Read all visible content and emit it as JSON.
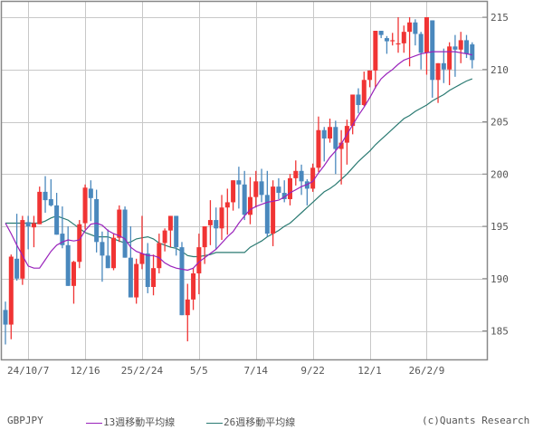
{
  "legend": {
    "symbol": "GBPJPY",
    "ma13_label": "13週移動平均線",
    "ma26_label": "26週移動平均線",
    "credit": "(c)Quants Research"
  },
  "colors": {
    "up": "#f03434",
    "down": "#4a88bd",
    "ma13": "#9922bb",
    "ma26": "#2a7a72",
    "grid": "#c8c8c8",
    "frame": "#888888",
    "axis_text": "#555555"
  },
  "chart_data": {
    "type": "candlestick",
    "title": "",
    "symbol": "GBPJPY",
    "xlabel": "",
    "ylabel": "",
    "ylim": [
      182.5,
      216.5
    ],
    "yticks": [
      185,
      190,
      195,
      200,
      205,
      210,
      215
    ],
    "xtick_labels": [
      "24/10/7",
      "12/16",
      "25/2/24",
      "5/5",
      "7/14",
      "9/22",
      "12/1",
      "26/2/9"
    ],
    "xtick_index": [
      4,
      14,
      24,
      34,
      44,
      54,
      64,
      74
    ],
    "grid": true,
    "legend_position": "bottom",
    "series": [
      {
        "name": "GBPJPY",
        "type": "ohlc",
        "values": [
          [
            187.0,
            187.8,
            183.7,
            185.6
          ],
          [
            185.6,
            192.3,
            184.2,
            192.1
          ],
          [
            191.9,
            196.2,
            189.8,
            190.0
          ],
          [
            190.0,
            196.0,
            189.4,
            195.6
          ],
          [
            195.4,
            196.0,
            192.8,
            195.0
          ],
          [
            194.9,
            196.0,
            193.0,
            195.3
          ],
          [
            195.2,
            198.8,
            195.2,
            198.3
          ],
          [
            198.3,
            199.8,
            196.3,
            197.5
          ],
          [
            197.6,
            199.5,
            196.9,
            197.0
          ],
          [
            197.0,
            198.2,
            194.8,
            194.2
          ],
          [
            194.3,
            196.9,
            192.9,
            193.2
          ],
          [
            193.2,
            195.0,
            191.3,
            189.3
          ],
          [
            189.3,
            191.7,
            187.6,
            191.6
          ],
          [
            191.6,
            195.6,
            191.0,
            195.2
          ],
          [
            195.3,
            199.0,
            194.7,
            198.7
          ],
          [
            198.6,
            199.4,
            195.5,
            197.7
          ],
          [
            197.6,
            198.5,
            192.5,
            193.5
          ],
          [
            193.5,
            194.5,
            189.7,
            192.2
          ],
          [
            192.2,
            194.7,
            191.5,
            191.0
          ],
          [
            191.0,
            194.3,
            190.8,
            193.9
          ],
          [
            193.9,
            197.0,
            193.5,
            196.6
          ],
          [
            196.6,
            196.9,
            193.4,
            192.0
          ],
          [
            192.0,
            195.0,
            190.0,
            188.2
          ],
          [
            188.2,
            191.9,
            187.6,
            191.4
          ],
          [
            191.4,
            196.0,
            190.9,
            192.4
          ],
          [
            192.4,
            193.4,
            188.6,
            189.2
          ],
          [
            189.2,
            192.3,
            188.4,
            191.0
          ],
          [
            191.0,
            194.3,
            190.5,
            193.4
          ],
          [
            193.4,
            194.8,
            192.6,
            194.6
          ],
          [
            194.6,
            195.9,
            193.0,
            196.0
          ],
          [
            196.0,
            195.9,
            192.2,
            193.0
          ],
          [
            193.0,
            193.5,
            188.8,
            186.5
          ],
          [
            186.5,
            189.5,
            184.0,
            188.0
          ],
          [
            188.0,
            191.0,
            187.0,
            190.5
          ],
          [
            190.5,
            194.3,
            188.5,
            193.0
          ],
          [
            193.0,
            194.5,
            191.4,
            195.0
          ],
          [
            195.1,
            197.5,
            193.2,
            195.6
          ],
          [
            195.6,
            196.8,
            192.8,
            194.8
          ],
          [
            194.8,
            198.0,
            193.7,
            196.8
          ],
          [
            196.8,
            198.6,
            194.2,
            197.3
          ],
          [
            197.3,
            199.0,
            196.5,
            199.4
          ],
          [
            199.4,
            200.7,
            196.7,
            199.0
          ],
          [
            199.0,
            200.3,
            195.6,
            196.1
          ],
          [
            196.1,
            199.7,
            195.2,
            197.8
          ],
          [
            197.8,
            200.3,
            196.8,
            199.3
          ],
          [
            199.3,
            200.5,
            197.3,
            198.0
          ],
          [
            198.0,
            200.3,
            194.0,
            194.3
          ],
          [
            194.3,
            199.4,
            193.1,
            198.8
          ],
          [
            198.8,
            199.6,
            197.6,
            198.2
          ],
          [
            198.2,
            199.4,
            197.3,
            197.6
          ],
          [
            197.6,
            200.0,
            197.0,
            199.6
          ],
          [
            199.6,
            201.3,
            198.9,
            200.3
          ],
          [
            200.3,
            200.9,
            198.0,
            199.3
          ],
          [
            199.3,
            199.5,
            197.0,
            198.6
          ],
          [
            198.6,
            201.0,
            198.3,
            200.6
          ],
          [
            200.6,
            205.5,
            200.2,
            204.2
          ],
          [
            204.2,
            204.5,
            201.2,
            203.4
          ],
          [
            203.4,
            205.3,
            203.0,
            204.5
          ],
          [
            204.5,
            205.1,
            200.0,
            202.4
          ],
          [
            202.4,
            204.2,
            199.0,
            203.0
          ],
          [
            203.0,
            205.2,
            200.9,
            204.6
          ],
          [
            204.6,
            207.6,
            203.8,
            207.6
          ],
          [
            207.6,
            208.2,
            205.8,
            206.6
          ],
          [
            206.6,
            209.8,
            206.5,
            209.0
          ],
          [
            209.0,
            209.9,
            208.3,
            209.9
          ],
          [
            209.9,
            213.2,
            208.2,
            213.7
          ],
          [
            213.7,
            212.8,
            213.0,
            213.3
          ],
          [
            213.0,
            213.2,
            211.5,
            212.7
          ],
          [
            212.7,
            213.5,
            212.3,
            212.8
          ],
          [
            212.5,
            215.0,
            211.6,
            212.5
          ],
          [
            212.5,
            214.2,
            211.6,
            213.6
          ],
          [
            213.6,
            215.0,
            210.3,
            214.5
          ],
          [
            214.5,
            214.8,
            212.3,
            213.4
          ],
          [
            213.4,
            213.6,
            210.0,
            211.6
          ],
          [
            211.6,
            215.0,
            209.5,
            215.0
          ],
          [
            214.7,
            214.7,
            207.3,
            209.0
          ],
          [
            209.0,
            209.8,
            206.8,
            210.6
          ],
          [
            210.6,
            212.0,
            208.7,
            210.0
          ],
          [
            210.0,
            212.6,
            208.5,
            212.2
          ],
          [
            212.2,
            213.3,
            209.3,
            211.9
          ],
          [
            211.9,
            213.6,
            210.6,
            212.8
          ],
          [
            212.8,
            213.3,
            211.1,
            211.5
          ],
          [
            212.4,
            212.6,
            210.1,
            210.9
          ]
        ]
      },
      {
        "name": "13週移動平均線",
        "type": "line",
        "values": [
          195.3,
          194.3,
          193.2,
          192.2,
          191.2,
          191.0,
          191.0,
          191.8,
          192.6,
          193.2,
          193.5,
          193.7,
          193.6,
          193.7,
          194.6,
          195.2,
          195.3,
          195.1,
          194.6,
          194.3,
          194.1,
          193.8,
          193.0,
          192.6,
          192.4,
          192.2,
          192.2,
          192.0,
          191.5,
          191.2,
          191.0,
          190.9,
          190.8,
          191.0,
          191.6,
          192.0,
          192.4,
          192.8,
          193.4,
          194.0,
          194.5,
          195.3,
          196.0,
          196.6,
          196.9,
          197.1,
          197.3,
          197.4,
          197.5,
          197.8,
          198.2,
          198.5,
          198.8,
          199.0,
          199.3,
          200.1,
          200.8,
          201.6,
          202.2,
          202.9,
          203.8,
          204.7,
          205.6,
          206.4,
          207.3,
          208.3,
          209.1,
          209.6,
          210.0,
          210.5,
          210.9,
          211.1,
          211.3,
          211.5,
          211.6,
          211.7,
          211.7,
          211.7,
          211.7,
          211.7,
          211.6,
          211.5,
          211.4
        ]
      },
      {
        "name": "26週移動平均線",
        "type": "line",
        "values": [
          195.3,
          195.3,
          195.3,
          195.3,
          195.3,
          195.3,
          195.3,
          195.5,
          195.8,
          196.0,
          195.8,
          195.6,
          195.2,
          194.8,
          194.4,
          194.2,
          194.0,
          194.0,
          194.0,
          193.8,
          193.6,
          193.4,
          193.5,
          193.8,
          193.9,
          194.0,
          193.8,
          193.4,
          193.2,
          193.0,
          192.9,
          192.6,
          192.2,
          192.1,
          192.1,
          192.2,
          192.3,
          192.5,
          192.5,
          192.5,
          192.5,
          192.5,
          192.5,
          193.0,
          193.3,
          193.6,
          194.0,
          194.3,
          194.6,
          195.0,
          195.3,
          195.8,
          196.3,
          196.8,
          197.3,
          197.8,
          198.3,
          198.6,
          199.0,
          199.5,
          200.0,
          200.6,
          201.2,
          201.7,
          202.2,
          202.8,
          203.3,
          203.8,
          204.3,
          204.8,
          205.3,
          205.6,
          206.0,
          206.3,
          206.6,
          207.0,
          207.3,
          207.6,
          208.0,
          208.3,
          208.6,
          208.9,
          209.1
        ]
      }
    ]
  }
}
